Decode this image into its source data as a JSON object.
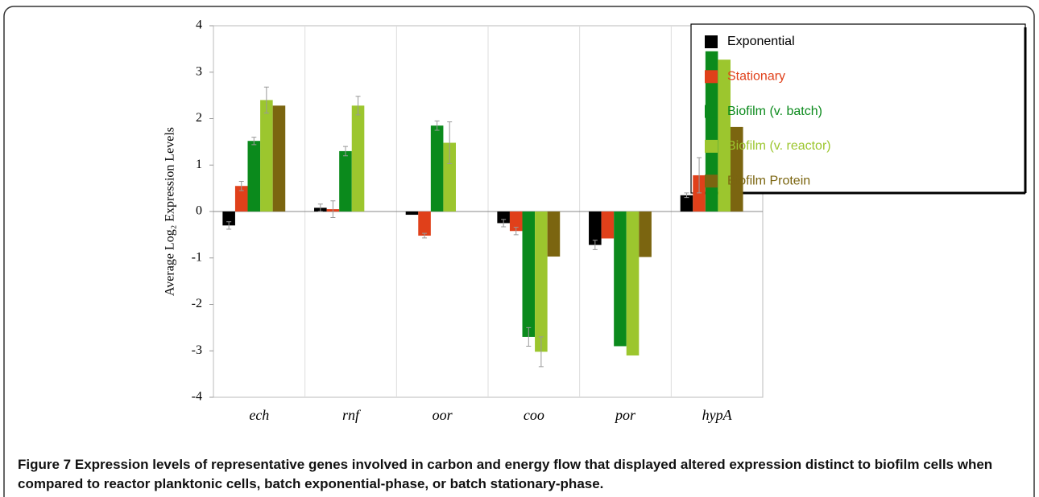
{
  "chart_data": {
    "type": "bar",
    "ylabel": "Average Log₂ Expression Levels",
    "categories": [
      "ech",
      "rnf",
      "oor",
      "coo",
      "por",
      "hypA"
    ],
    "series": [
      {
        "name": "Exponential",
        "color": "#000000",
        "values": [
          -0.3,
          0.08,
          -0.07,
          -0.25,
          -0.72,
          0.35
        ],
        "errors": [
          0.08,
          0.08,
          null,
          0.08,
          0.1,
          0.05
        ]
      },
      {
        "name": "Stationary",
        "color": "#e0401a",
        "values": [
          0.55,
          0.05,
          -0.52,
          -0.42,
          -0.58,
          0.78
        ],
        "errors": [
          0.1,
          0.18,
          0.05,
          0.08,
          null,
          0.38
        ]
      },
      {
        "name": "Biofilm (v. batch)",
        "color": "#0b8a1c",
        "values": [
          1.52,
          1.3,
          1.85,
          -2.7,
          -2.9,
          3.45
        ],
        "errors": [
          0.08,
          0.1,
          0.1,
          0.2,
          null,
          null
        ]
      },
      {
        "name": "Biofilm (v. reactor)",
        "color": "#9cc62e",
        "values": [
          2.4,
          2.28,
          1.48,
          -3.02,
          -3.1,
          3.27
        ],
        "errors": [
          0.28,
          0.2,
          0.45,
          0.32,
          null,
          null
        ]
      },
      {
        "name": "Biofilm Protein",
        "color": "#7b6510",
        "values": [
          2.28,
          null,
          null,
          -0.97,
          -0.98,
          1.82
        ],
        "errors": [
          null,
          null,
          null,
          null,
          null,
          null
        ]
      }
    ],
    "ylim": [
      -4,
      4
    ],
    "yticks": [
      -4,
      -3,
      -2,
      -1,
      0,
      1,
      2,
      3,
      4
    ],
    "legend": "right"
  },
  "caption": {
    "label": "Figure 7",
    "text": "Expression levels of representative genes involved in carbon and energy flow that displayed altered expression distinct to biofilm cells when compared to reactor planktonic cells, batch exponential-phase, or batch stationary-phase."
  }
}
